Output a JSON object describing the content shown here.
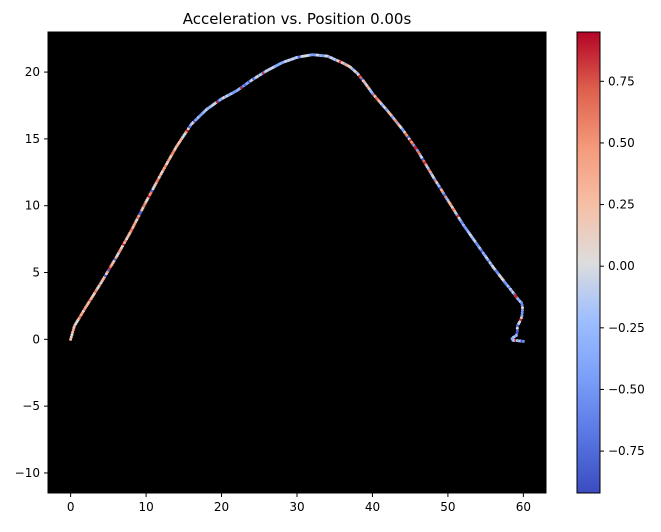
{
  "chart_data": {
    "type": "scatter",
    "title": "Acceleration vs. Position 0.00s",
    "xlabel": "",
    "ylabel": "",
    "xlim": [
      -3,
      63
    ],
    "ylim": [
      -11.5,
      23
    ],
    "xticks": [
      0,
      10,
      20,
      30,
      40,
      50,
      60
    ],
    "yticks": [
      -10,
      -5,
      0,
      5,
      10,
      15,
      20
    ],
    "plot_background": "#000000",
    "grid": false,
    "legend": "none",
    "colorbar": {
      "colormap": "coolwarm",
      "range": [
        -0.92,
        0.95
      ],
      "ticks": [
        -0.75,
        -0.5,
        -0.25,
        0.0,
        0.25,
        0.5,
        0.75
      ],
      "tick_labels": [
        "−0.75",
        "−0.50",
        "−0.25",
        "0.00",
        "0.25",
        "0.50",
        "0.75"
      ]
    },
    "track": {
      "x": [
        0,
        0.5,
        2,
        4,
        6,
        8,
        10,
        12,
        14,
        16,
        18,
        20,
        22,
        24,
        26,
        28,
        30,
        32,
        34,
        36,
        37,
        38,
        39,
        40,
        42,
        44,
        46,
        48,
        50,
        52,
        54,
        56,
        57.5,
        58.5,
        59.3,
        59.8,
        59.9,
        59.8,
        59.5,
        59.2,
        59.2,
        59.1,
        58.8,
        58.5,
        58.6,
        59.2,
        60.0
      ],
      "y": [
        0,
        1,
        2.4,
        4.2,
        6.1,
        8.1,
        10.3,
        12.4,
        14.4,
        16.1,
        17.2,
        18,
        18.6,
        19.4,
        20.1,
        20.7,
        21.1,
        21.3,
        21.2,
        20.7,
        20.4,
        19.9,
        19.2,
        18.4,
        17.1,
        15.7,
        14.1,
        12.2,
        10.4,
        8.6,
        7.0,
        5.4,
        4.3,
        3.6,
        3.0,
        2.7,
        2.3,
        1.7,
        1.3,
        1.0,
        0.6,
        0.3,
        0.2,
        0.05,
        -0.08,
        -0.1,
        -0.15
      ]
    },
    "point_count": 400,
    "point_colors_note_source": "coolwarm by acceleration"
  }
}
